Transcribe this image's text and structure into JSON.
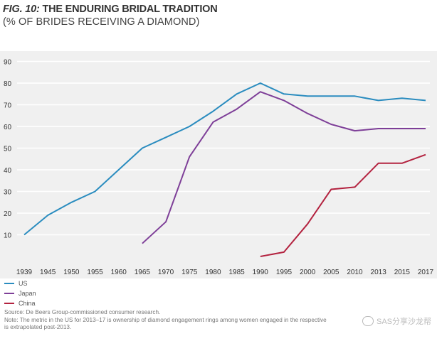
{
  "header": {
    "fig_label": "FIG. 10:",
    "title_text": "THE ENDURING BRIDAL TRADITION",
    "subtitle": "(% OF BRIDES RECEIVING A DIAMOND)"
  },
  "chart_data": {
    "type": "line",
    "title": "FIG. 10: THE ENDURING BRIDAL TRADITION",
    "subtitle": "(% OF BRIDES RECEIVING A DIAMOND)",
    "xlabel": "",
    "ylabel": "",
    "ylim": [
      0,
      90
    ],
    "yticks": [
      10,
      20,
      30,
      40,
      50,
      60,
      70,
      80,
      90
    ],
    "grid": true,
    "categories": [
      "1939",
      "1945",
      "1950",
      "1955",
      "1960",
      "1965",
      "1970",
      "1975",
      "1980",
      "1985",
      "1990",
      "1995",
      "2000",
      "2005",
      "2010",
      "2013",
      "2015",
      "2017"
    ],
    "series": [
      {
        "name": "US",
        "color": "#2a8cbf",
        "values": [
          10,
          19,
          25,
          30,
          40,
          50,
          55,
          60,
          67,
          75,
          80,
          75,
          74,
          74,
          74,
          72,
          73,
          72
        ]
      },
      {
        "name": "Japan",
        "color": "#7e3f98",
        "values": [
          null,
          null,
          null,
          null,
          null,
          6,
          16,
          46,
          62,
          68,
          76,
          72,
          66,
          61,
          58,
          59,
          59,
          59
        ]
      },
      {
        "name": "China",
        "color": "#b3223f",
        "values": [
          null,
          null,
          null,
          null,
          null,
          null,
          null,
          null,
          null,
          null,
          0,
          2,
          15,
          31,
          32,
          43,
          43,
          47
        ]
      }
    ],
    "legend_position": "bottom-left"
  },
  "legend": {
    "items": [
      {
        "label": "US",
        "color": "#2a8cbf"
      },
      {
        "label": "Japan",
        "color": "#7e3f98"
      },
      {
        "label": "China",
        "color": "#b3223f"
      }
    ]
  },
  "notes": {
    "source": "Source: De Beers Group-commissioned consumer research.",
    "note": "Note: The metric in the US for 2013–17 is ownership of diamond engagement rings among women engaged in the respective",
    "note_cont": "is extrapolated post-2013."
  },
  "watermark": {
    "text": "SAS分享沙龙帮"
  }
}
